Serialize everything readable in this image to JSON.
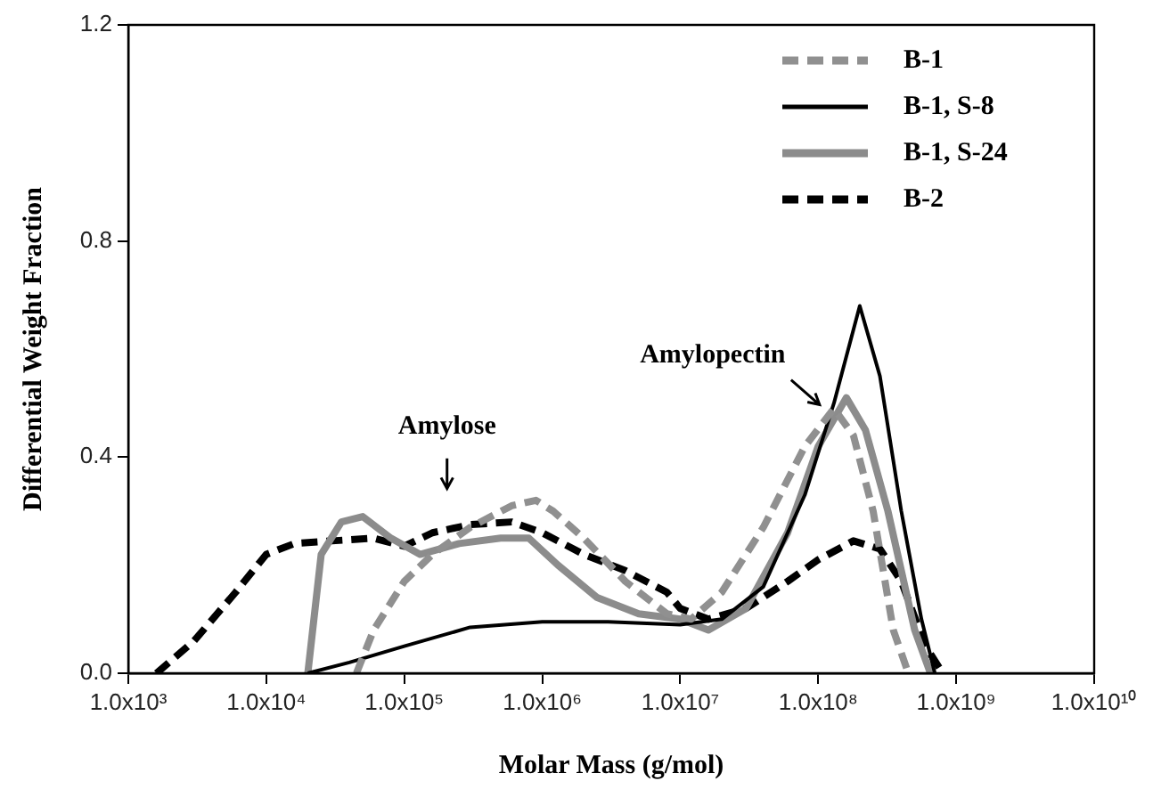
{
  "chart_data": {
    "type": "line",
    "xlabel": "Molar Mass (g/mol)",
    "ylabel": "Differential Weight Fraction",
    "log": "x",
    "xlim": [
      1000,
      10000000000
    ],
    "xticks": [
      {
        "value": 1000,
        "label": "1.0x10³"
      },
      {
        "value": 10000,
        "label": "1.0x10⁴"
      },
      {
        "value": 100000,
        "label": "1.0x10⁵"
      },
      {
        "value": 1000000,
        "label": "1.0x10⁶"
      },
      {
        "value": 10000000,
        "label": "1.0x10⁷"
      },
      {
        "value": 100000000,
        "label": "1.0x10⁸"
      },
      {
        "value": 1000000000,
        "label": "1.0x10⁹"
      },
      {
        "value": 10000000000,
        "label": "1.0x10¹⁰"
      }
    ],
    "ylim": [
      0,
      1.2
    ],
    "yticks": [
      {
        "value": 0,
        "label": "0.0"
      },
      {
        "value": 0.4,
        "label": "0.4"
      },
      {
        "value": 0.8,
        "label": "0.8"
      },
      {
        "value": 1.2,
        "label": "1.2"
      }
    ],
    "grid": false,
    "legend": "top right",
    "marker": "none",
    "series": [
      {
        "name": "B-1",
        "color": "#909090",
        "line_style": "dashed",
        "x": [
          45000,
          60000,
          100000,
          160000,
          300000,
          600000,
          900000,
          1200000,
          2000000,
          4000000,
          8000000,
          12000000,
          20000000,
          40000000,
          80000000,
          130000000,
          180000000,
          250000000,
          350000000,
          450000000
        ],
        "values": [
          0,
          0.08,
          0.17,
          0.22,
          0.27,
          0.31,
          0.32,
          0.3,
          0.25,
          0.17,
          0.11,
          0.1,
          0.15,
          0.27,
          0.42,
          0.49,
          0.44,
          0.3,
          0.08,
          0
        ]
      },
      {
        "name": "B-1, S-8",
        "color": "#000000",
        "line_style": "solid",
        "x": [
          20000,
          40000,
          100000,
          300000,
          1000000,
          3000000,
          10000000,
          20000000,
          40000000,
          80000000,
          130000000,
          200000000,
          280000000,
          400000000,
          560000000,
          700000000
        ],
        "values": [
          0,
          0.02,
          0.05,
          0.085,
          0.095,
          0.095,
          0.09,
          0.1,
          0.16,
          0.33,
          0.5,
          0.68,
          0.55,
          0.3,
          0.1,
          0
        ]
      },
      {
        "name": "B-1, S-24",
        "color": "#8c8c8c",
        "line_style": "solid",
        "x": [
          20000,
          25000,
          35000,
          50000,
          80000,
          130000,
          250000,
          500000,
          800000,
          1300000,
          2500000,
          5000000,
          10000000,
          16000000,
          30000000,
          60000000,
          100000000,
          160000000,
          220000000,
          320000000,
          500000000,
          650000000
        ],
        "values": [
          0,
          0.22,
          0.28,
          0.29,
          0.25,
          0.22,
          0.24,
          0.25,
          0.25,
          0.2,
          0.14,
          0.11,
          0.1,
          0.08,
          0.12,
          0.26,
          0.42,
          0.51,
          0.45,
          0.3,
          0.08,
          0
        ]
      },
      {
        "name": "B-2",
        "color": "#000000",
        "line_style": "dashed",
        "x": [
          1600,
          3000,
          6000,
          10000,
          16000,
          30000,
          60000,
          100000,
          160000,
          300000,
          600000,
          1000000,
          2000000,
          4000000,
          8000000,
          10000000,
          16000000,
          30000000,
          60000000,
          100000000,
          180000000,
          280000000,
          400000000,
          600000000,
          800000000
        ],
        "values": [
          0,
          0.06,
          0.15,
          0.22,
          0.24,
          0.245,
          0.25,
          0.235,
          0.26,
          0.275,
          0.28,
          0.26,
          0.22,
          0.19,
          0.15,
          0.12,
          0.1,
          0.12,
          0.17,
          0.21,
          0.245,
          0.23,
          0.17,
          0.05,
          0
        ]
      }
    ],
    "annotations": [
      "Amylose",
      "Amylopectin"
    ]
  }
}
